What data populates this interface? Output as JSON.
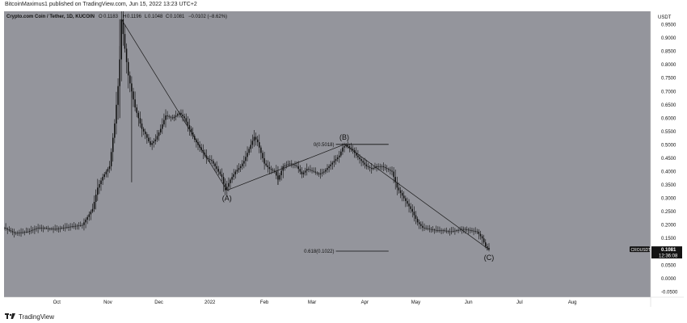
{
  "header": {
    "published": "BitcoinMaximus1 published on TradingView.com, Jun 15, 2022 13:23 UTC+2"
  },
  "footer": {
    "brand": "TradingView"
  },
  "colors": {
    "plot_bg": "#94959c",
    "axis_bg": "#ffffff",
    "candle": "#0c0c0c",
    "price_tag": "#131313"
  },
  "chart_data": {
    "type": "candlestick",
    "title": "Crypto.com Coin / Tether, 1D, KUCOIN",
    "ohlc": [
      {
        "label": "O",
        "value": "0.1183"
      },
      {
        "label": "H",
        "value": "0.1196"
      },
      {
        "label": "L",
        "value": "0.1048"
      },
      {
        "label": "C",
        "value": "0.1081"
      },
      {
        "label": "",
        "value": "−0.0102 (−8.62%)"
      }
    ],
    "currency": "USDT",
    "ylim": [
      -0.07,
      1.0
    ],
    "y_ticks": [
      "0.9500",
      "0.9000",
      "0.8500",
      "0.8000",
      "0.7500",
      "0.7000",
      "0.6500",
      "0.6000",
      "0.5500",
      "0.5000",
      "0.4500",
      "0.4000",
      "0.3500",
      "0.3000",
      "0.2500",
      "0.2000",
      "0.1500",
      "0.1000",
      "0.0500",
      "0.0000",
      "-0.0500"
    ],
    "x_ticks": [
      "Oct",
      "Nov",
      "Dec",
      "2022",
      "Feb",
      "Mar",
      "Apr",
      "May",
      "Jun",
      "Jul",
      "Aug"
    ],
    "x_tick_days": [
      31,
      61,
      91,
      121,
      153,
      181,
      212,
      242,
      273,
      303,
      334
    ],
    "x_range_days": [
      0,
      380
    ],
    "series_points": [
      [
        0,
        0.19
      ],
      [
        6,
        0.17
      ],
      [
        14,
        0.175
      ],
      [
        20,
        0.19
      ],
      [
        30,
        0.185
      ],
      [
        40,
        0.195
      ],
      [
        46,
        0.2
      ],
      [
        52,
        0.26
      ],
      [
        55,
        0.34
      ],
      [
        58,
        0.38
      ],
      [
        62,
        0.42
      ],
      [
        65,
        0.58
      ],
      [
        67,
        0.72
      ],
      [
        68,
        0.82
      ],
      [
        69,
        0.97
      ],
      [
        71,
        0.86
      ],
      [
        73,
        0.76
      ],
      [
        75,
        0.7
      ],
      [
        77,
        0.64
      ],
      [
        79,
        0.6
      ],
      [
        81,
        0.56
      ],
      [
        83,
        0.54
      ],
      [
        86,
        0.5
      ],
      [
        89,
        0.52
      ],
      [
        92,
        0.56
      ],
      [
        95,
        0.61
      ],
      [
        99,
        0.6
      ],
      [
        103,
        0.62
      ],
      [
        106,
        0.6
      ],
      [
        109,
        0.56
      ],
      [
        112,
        0.52
      ],
      [
        116,
        0.48
      ],
      [
        119,
        0.45
      ],
      [
        122,
        0.44
      ],
      [
        125,
        0.41
      ],
      [
        128,
        0.38
      ],
      [
        130,
        0.33
      ],
      [
        133,
        0.37
      ],
      [
        136,
        0.4
      ],
      [
        139,
        0.42
      ],
      [
        141,
        0.44
      ],
      [
        143,
        0.47
      ],
      [
        145,
        0.5
      ],
      [
        147,
        0.53
      ],
      [
        149,
        0.51
      ],
      [
        151,
        0.47
      ],
      [
        153,
        0.43
      ],
      [
        156,
        0.41
      ],
      [
        159,
        0.4
      ],
      [
        161,
        0.37
      ],
      [
        164,
        0.42
      ],
      [
        168,
        0.43
      ],
      [
        172,
        0.42
      ],
      [
        175,
        0.39
      ],
      [
        178,
        0.41
      ],
      [
        182,
        0.4
      ],
      [
        185,
        0.39
      ],
      [
        188,
        0.4
      ],
      [
        191,
        0.42
      ],
      [
        194,
        0.44
      ],
      [
        197,
        0.46
      ],
      [
        199,
        0.49
      ],
      [
        201,
        0.5
      ],
      [
        203,
        0.49
      ],
      [
        205,
        0.48
      ],
      [
        207,
        0.46
      ],
      [
        210,
        0.44
      ],
      [
        213,
        0.42
      ],
      [
        216,
        0.41
      ],
      [
        219,
        0.42
      ],
      [
        222,
        0.42
      ],
      [
        225,
        0.41
      ],
      [
        228,
        0.4
      ],
      [
        231,
        0.34
      ],
      [
        234,
        0.31
      ],
      [
        237,
        0.28
      ],
      [
        240,
        0.25
      ],
      [
        243,
        0.21
      ],
      [
        246,
        0.19
      ],
      [
        250,
        0.185
      ],
      [
        254,
        0.18
      ],
      [
        258,
        0.18
      ],
      [
        262,
        0.175
      ],
      [
        266,
        0.18
      ],
      [
        270,
        0.185
      ],
      [
        274,
        0.18
      ],
      [
        278,
        0.175
      ],
      [
        281,
        0.15
      ],
      [
        283,
        0.12
      ],
      [
        285,
        0.108
      ]
    ],
    "wicks": [
      {
        "x": 68,
        "low": 0.6,
        "high": 0.97
      },
      {
        "x": 75,
        "low": 0.36,
        "high": 0.72
      },
      {
        "x": 161,
        "low": 0.35,
        "high": 0.42
      },
      {
        "x": 284,
        "low": 0.1048,
        "high": 0.1196
      }
    ],
    "elliott_wave": [
      {
        "label": "(A)",
        "x": 131,
        "y": 0.33
      },
      {
        "label": "(B)",
        "x": 200,
        "y": 0.5018
      },
      {
        "label": "(C)",
        "x": 285,
        "y": 0.1081
      }
    ],
    "trendline": [
      [
        69,
        0.97
      ],
      [
        131,
        0.33
      ],
      [
        200,
        0.5018
      ],
      [
        285,
        0.1081
      ]
    ],
    "fib_levels": [
      {
        "label": "0(0.5018)",
        "value": 0.5018,
        "x_start": 195,
        "x_end": 226
      },
      {
        "label": "0.618(0.1022)",
        "value": 0.1022,
        "x_start": 195,
        "x_end": 226
      }
    ],
    "last_price": {
      "symbol": "CROUSDT",
      "price": "0.1081",
      "countdown": "12:36:08",
      "value": 0.1081
    }
  }
}
